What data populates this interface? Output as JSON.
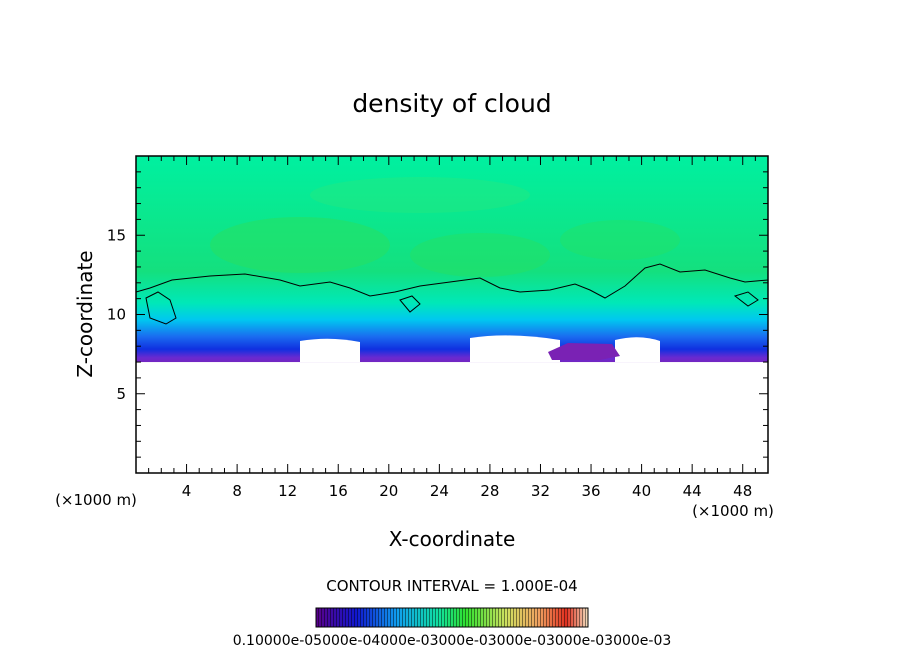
{
  "chart_data": {
    "type": "heatmap",
    "title": "density of cloud",
    "xlabel": "X-coordinate",
    "ylabel": "Z-coordinate",
    "x_unit_left": "(×1000 m)",
    "x_unit_right": "(×1000 m)",
    "xlim": [
      0,
      50
    ],
    "ylim": [
      0,
      20
    ],
    "x_ticks": [
      4,
      8,
      12,
      16,
      20,
      24,
      28,
      32,
      36,
      40,
      44,
      48
    ],
    "x_tick_labels": [
      "4",
      "8",
      "12",
      "16",
      "20",
      "24",
      "28",
      "32",
      "36",
      "40",
      "44",
      "48"
    ],
    "y_ticks": [
      5,
      10,
      15
    ],
    "y_tick_labels": [
      "5",
      "10",
      "15"
    ],
    "cloud_base_z": 7.0,
    "contour_level_z": 12.4,
    "contour_interval": "CONTOUR INTERVAL = 1.000E-04",
    "colorbar_labels": "0.10000e-05000e-04000e-03000e-03000e-03000e-03000e-03",
    "colors": {
      "upper": "#00f0a0",
      "mid_cyan": "#00c8f0",
      "mid_blue": "#1030e0",
      "low_purple": "#7a22b4",
      "background": "#ffffff"
    }
  }
}
